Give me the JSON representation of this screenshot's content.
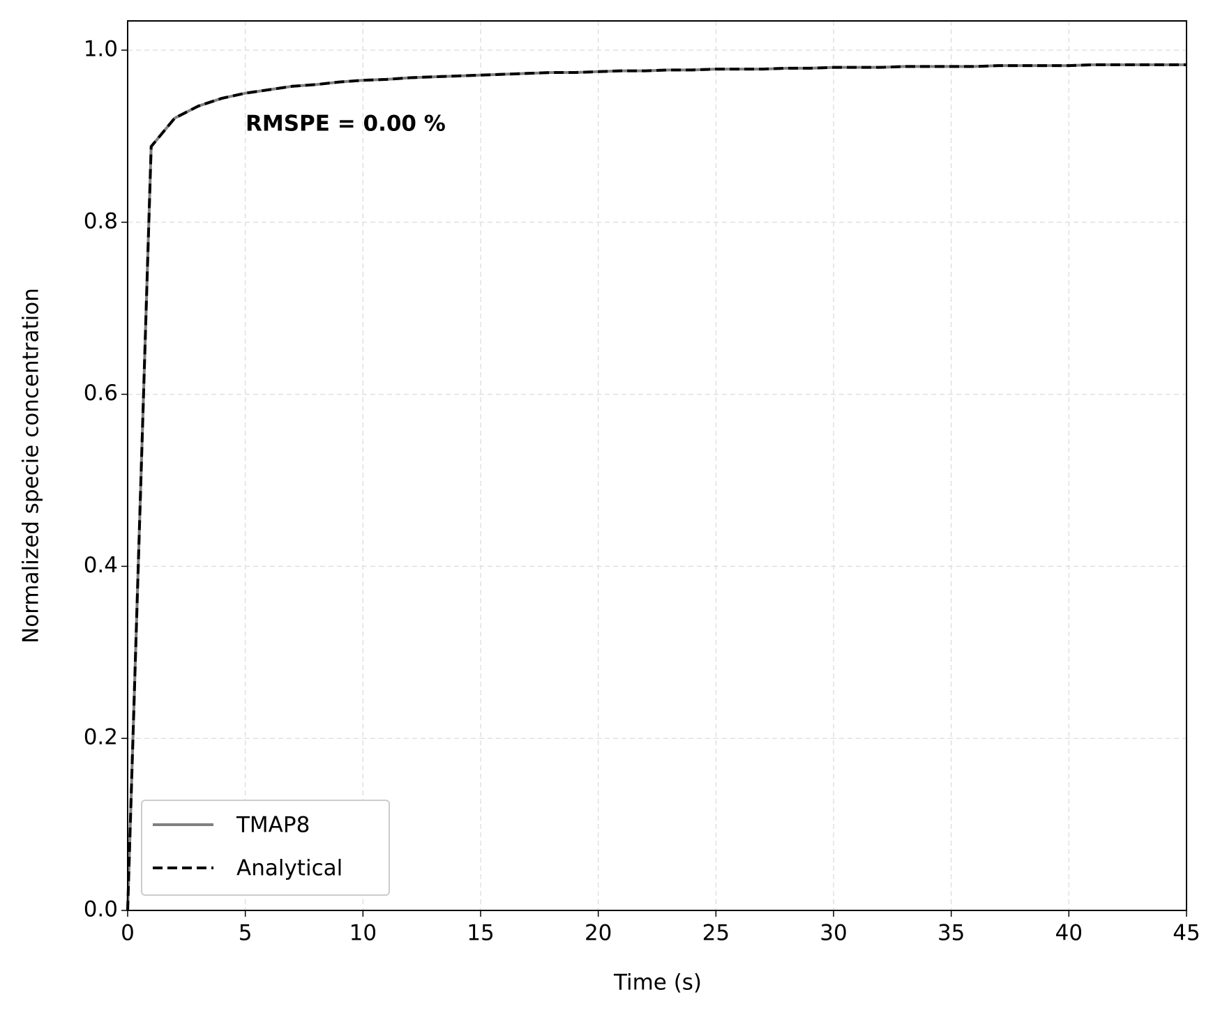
{
  "chart_data": {
    "type": "line",
    "xlabel": "Time (s)",
    "ylabel": "Normalized specie concentration",
    "annotation": "RMSPE = 0.00 %",
    "x": [
      0,
      1,
      2,
      3,
      4,
      5,
      6,
      7,
      8,
      9,
      10,
      11,
      12,
      13,
      14,
      15,
      16,
      17,
      18,
      19,
      20,
      21,
      22,
      23,
      24,
      25,
      26,
      27,
      28,
      29,
      30,
      31,
      32,
      33,
      34,
      35,
      36,
      37,
      38,
      39,
      40,
      41,
      42,
      43,
      44,
      45
    ],
    "series": [
      {
        "name": "TMAP8",
        "color": "#808080",
        "dash": false,
        "values": [
          0,
          0.888,
          0.921,
          0.935,
          0.944,
          0.95,
          0.954,
          0.958,
          0.96,
          0.963,
          0.965,
          0.966,
          0.968,
          0.969,
          0.97,
          0.971,
          0.972,
          0.973,
          0.974,
          0.974,
          0.975,
          0.976,
          0.976,
          0.977,
          0.977,
          0.978,
          0.978,
          0.978,
          0.979,
          0.979,
          0.98,
          0.98,
          0.98,
          0.981,
          0.981,
          0.981,
          0.981,
          0.982,
          0.982,
          0.982,
          0.982,
          0.983,
          0.983,
          0.983,
          0.983,
          0.983
        ]
      },
      {
        "name": "Analytical",
        "color": "#000000",
        "dash": true,
        "values": [
          0,
          0.888,
          0.921,
          0.935,
          0.944,
          0.95,
          0.954,
          0.958,
          0.96,
          0.963,
          0.965,
          0.966,
          0.968,
          0.969,
          0.97,
          0.971,
          0.972,
          0.973,
          0.974,
          0.974,
          0.975,
          0.976,
          0.976,
          0.977,
          0.977,
          0.978,
          0.978,
          0.978,
          0.979,
          0.979,
          0.98,
          0.98,
          0.98,
          0.981,
          0.981,
          0.981,
          0.981,
          0.982,
          0.982,
          0.982,
          0.982,
          0.983,
          0.983,
          0.983,
          0.983,
          0.983
        ]
      }
    ],
    "xlim": [
      0,
      45
    ],
    "xticks": [
      0,
      5,
      10,
      15,
      20,
      25,
      30,
      35,
      40,
      45
    ],
    "ylim": [
      0,
      1.034
    ],
    "yticks": [
      {
        "value": 0,
        "label": "0.0"
      },
      0.2,
      0.4,
      0.6,
      0.8,
      {
        "value": 1,
        "label": "1.0"
      }
    ],
    "grid": true,
    "legend": "lower left"
  }
}
